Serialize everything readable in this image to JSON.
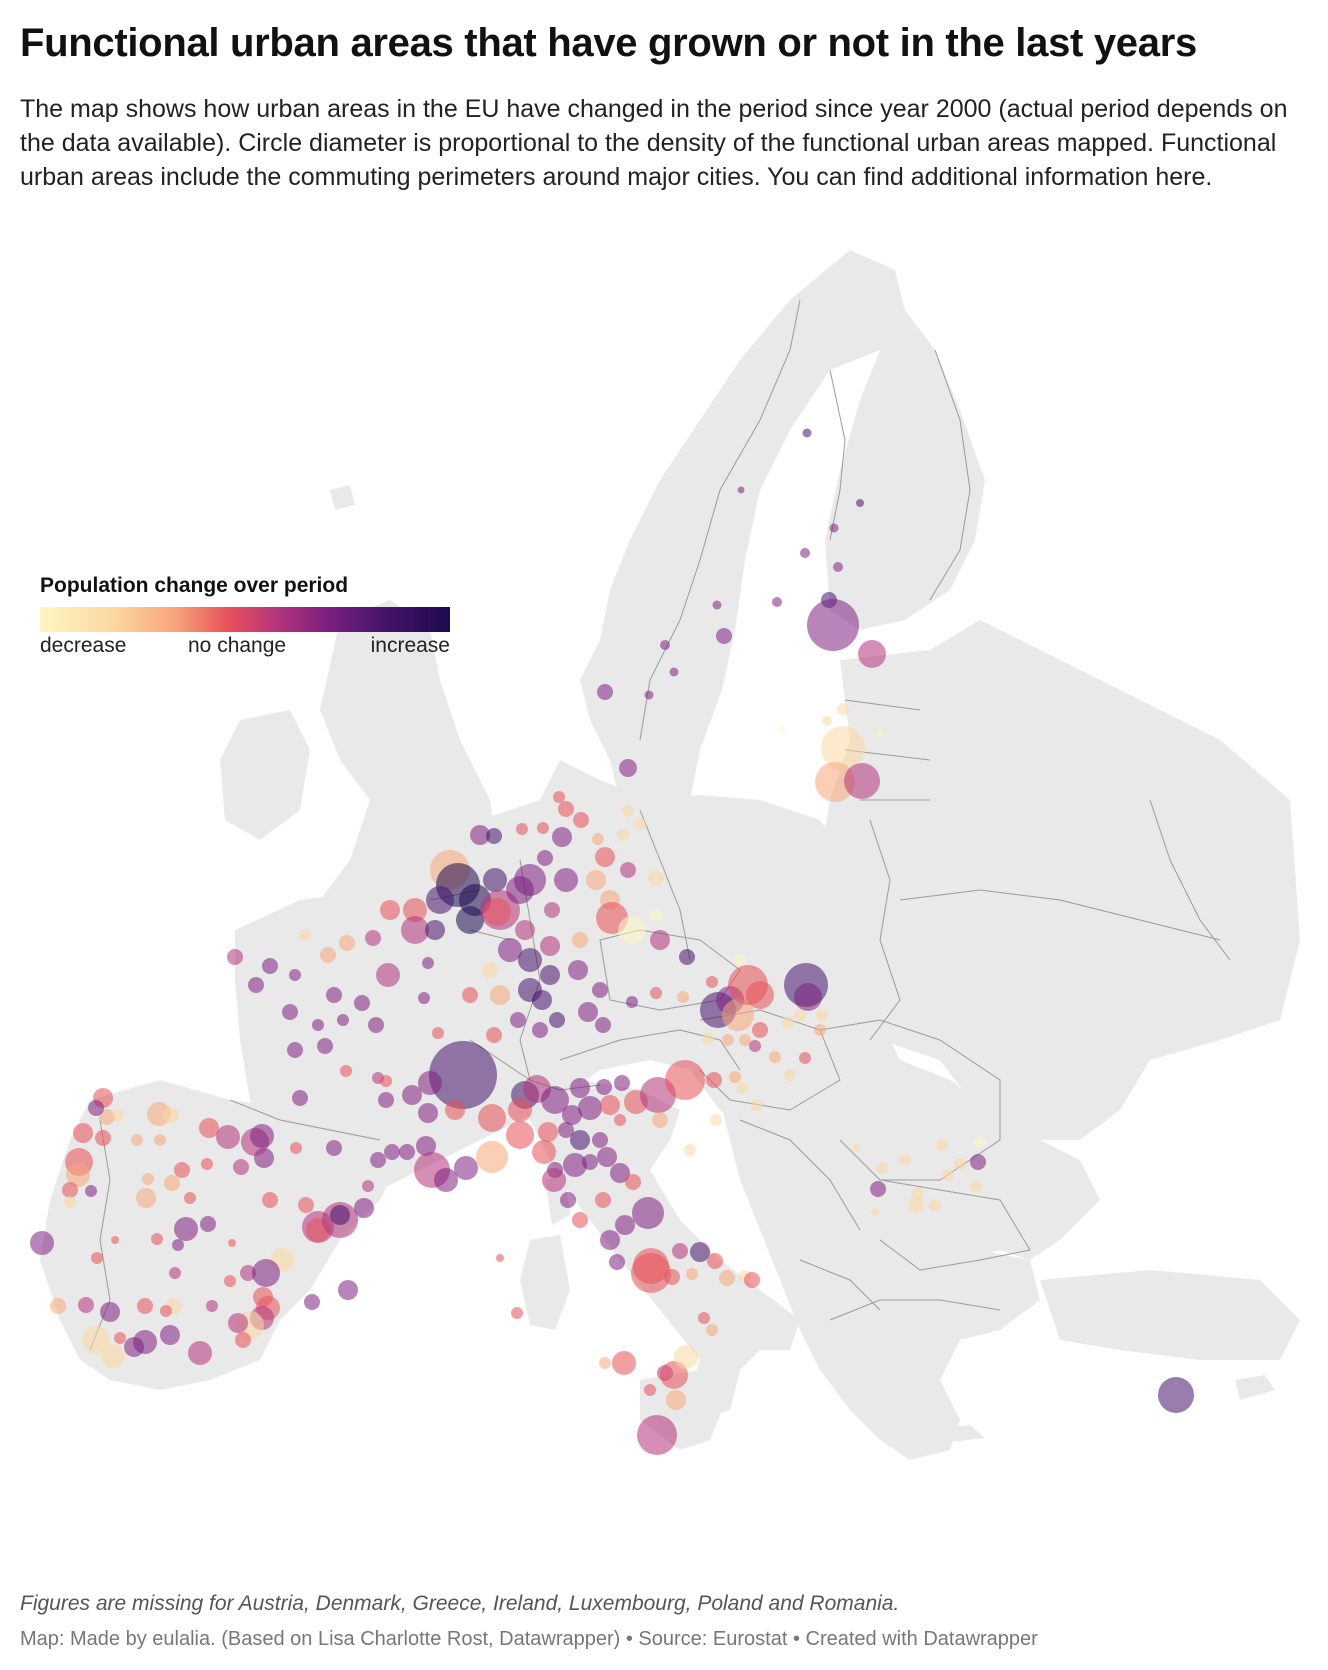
{
  "title": "Functional urban areas that have grown or not in the last years",
  "description": "The map shows how urban areas in the EU have changed in the period since year 2000 (actual period depends on the data available). Circle diameter is proportional to the density of the functional urban areas mapped. Functional urban areas include the commuting perimeters around major cities. You can find additional information here.",
  "legend": {
    "title": "Population change over period",
    "label_low": "decrease",
    "label_mid": "no change",
    "label_high": "increase"
  },
  "colors": {
    "background": "#ffffff",
    "land": "#e9e9e9",
    "border": "#9a9a9a",
    "ramp": [
      "#fef6c3",
      "#fcd7a0",
      "#f8a57a",
      "#e8505a",
      "#b3337b",
      "#7d1f80",
      "#45136b",
      "#1d0b4e"
    ]
  },
  "note": "Figures are missing for Austria, Denmark, Greece, Ireland, Luxembourg, Poland and Romania.",
  "footer": "Map: Made by eulalia. (Based on Lisa Charlotte Rost, Datawrapper) • Source: Eurostat • Created with Datawrapper"
}
